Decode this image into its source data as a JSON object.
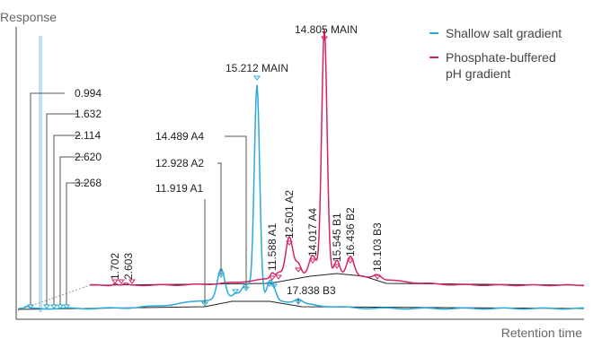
{
  "chart_data": {
    "type": "line",
    "title": "",
    "xlabel": "Retention time",
    "ylabel": "Response",
    "grid": false,
    "legend_position": "top-right",
    "colors": {
      "blue": "#29a9d8",
      "magenta": "#d4246a",
      "baseline": "#222222",
      "axis": "#444444",
      "leader": "#555555",
      "dotted": "#999999",
      "marker_band": "#bfe0f2"
    },
    "series": [
      {
        "name": "Shallow salt gradient",
        "color": "#29a9d8"
      },
      {
        "name": "Phosphate-buffered pH gradient",
        "name_lines": [
          "Phosphate-buffered",
          "pH gradient"
        ],
        "color": "#d4246a"
      }
    ],
    "labels": {
      "early_blue": [
        "0.994",
        "1.632",
        "2.114",
        "2.620",
        "3.268"
      ],
      "blue_named": [
        "14.489 A4",
        "12.928 A2",
        "11.919 A1"
      ],
      "blue_main": "15.212 MAIN",
      "blue_late": "17.838 B3",
      "magenta_main": "14.805 MAIN",
      "magenta_early": [
        "1.702",
        "2.603"
      ],
      "magenta_named": [
        "11.588 A1",
        "12.501 A2",
        "14.017 A4",
        "15.545 B1",
        "16.436 B2",
        "18.103 B3"
      ]
    }
  }
}
